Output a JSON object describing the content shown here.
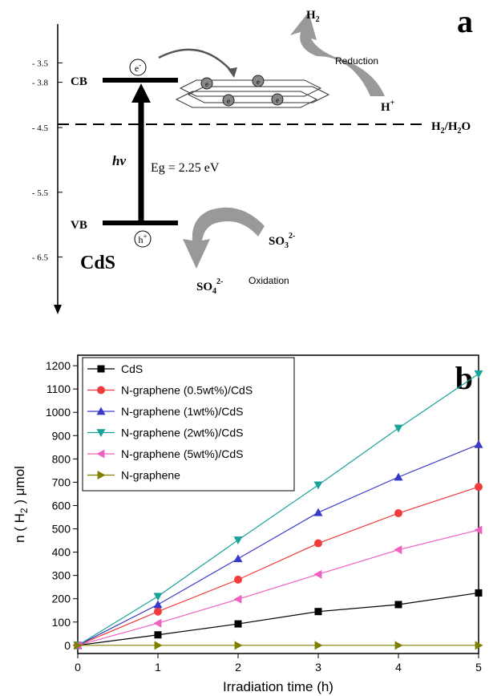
{
  "diagram": {
    "panel_label": "a",
    "axis": {
      "lim": [
        -2.9,
        -7.3
      ],
      "ticks": [
        {
          "value": -3.5,
          "label": "- 3.5"
        },
        {
          "value": -3.8,
          "label": "- 3.8"
        },
        {
          "value": -4.5,
          "label": "- 4.5"
        },
        {
          "value": -5.5,
          "label": "- 5.5"
        },
        {
          "value": -6.5,
          "label": "- 6.5"
        }
      ]
    },
    "cb": "CB",
    "vb": "VB",
    "electron": "e",
    "electron_sup": "-",
    "hole": "h",
    "hole_sup": "+",
    "photon": "hv",
    "band_gap": "Eg = 2.25 eV",
    "material": "CdS",
    "h2": {
      "main": "H",
      "sub": "2"
    },
    "reduction": "Reduction",
    "h_plus": {
      "main": "H",
      "sup": "+"
    },
    "h2_h2o": {
      "a": "H",
      "a_sub": "2",
      "b": "/H",
      "b_sub": "2",
      "c": "O"
    },
    "so3": {
      "main": "SO",
      "sub": "3",
      "sup": "2-"
    },
    "so4": {
      "main": "SO",
      "sub": "4",
      "sup": "2-"
    },
    "oxidation": "Oxidation",
    "sheet_electron": "e"
  },
  "chart_data": {
    "type": "line",
    "panel_label": "b",
    "x_label": "Irradiation time (h)",
    "y_label": {
      "before": "n ( H",
      "sub": "2",
      "after": " )  μmol"
    },
    "x": [
      0,
      1,
      2,
      3,
      4,
      5
    ],
    "xlim": [
      0,
      5
    ],
    "xticks": [
      0,
      1,
      2,
      3,
      4,
      5
    ],
    "ylim": [
      -35,
      1245
    ],
    "yticks": [
      0,
      100,
      200,
      300,
      400,
      500,
      600,
      700,
      800,
      900,
      1000,
      1100,
      1200
    ],
    "legend": "upper left",
    "series": [
      {
        "name": "CdS",
        "color": "#000000",
        "marker": "square",
        "values": [
          0,
          45,
          92,
          145,
          175,
          225
        ]
      },
      {
        "name": "N-graphene (0.5wt%)/CdS",
        "color": "#f03c3c",
        "marker": "circle",
        "values": [
          0,
          145,
          282,
          438,
          567,
          680
        ]
      },
      {
        "name": "N-graphene (1wt%)/CdS",
        "color": "#3a3ac8",
        "marker": "triangle-up",
        "values": [
          0,
          175,
          372,
          570,
          722,
          862
        ]
      },
      {
        "name": "N-graphene (2wt%)/CdS",
        "color": "#1aa39a",
        "marker": "triangle-down",
        "values": [
          0,
          210,
          452,
          688,
          932,
          1165
        ]
      },
      {
        "name": "N-graphene (5wt%)/CdS",
        "color": "#f060c0",
        "marker": "triangle-left",
        "values": [
          0,
          95,
          198,
          305,
          410,
          495
        ]
      },
      {
        "name": "N-graphene",
        "color": "#808000",
        "marker": "triangle-right",
        "values": [
          0,
          0,
          0,
          0,
          0,
          0
        ]
      }
    ]
  }
}
